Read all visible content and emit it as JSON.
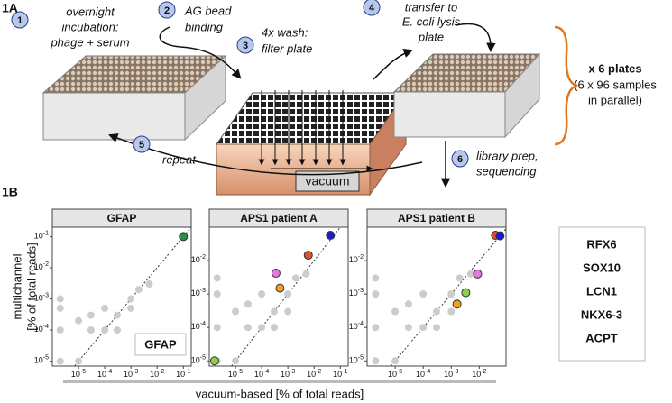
{
  "panel_a": {
    "label": "1A",
    "steps": [
      {
        "number": "1",
        "lines": [
          "overnight",
          "incubation:",
          "phage + serum"
        ]
      },
      {
        "number": "2",
        "lines": [
          "AG bead",
          "binding"
        ]
      },
      {
        "number": "3",
        "lines": [
          "4x wash:",
          "filter plate"
        ]
      },
      {
        "number": "4",
        "lines": [
          "transfer to",
          "E. coli lysis",
          "plate"
        ]
      },
      {
        "number": "5",
        "lines": [
          "repeat"
        ]
      },
      {
        "number": "6",
        "lines": [
          "library prep,",
          "sequencing"
        ]
      }
    ],
    "vacuum": "vacuum",
    "summary": [
      "x 6 plates",
      "(6 x 96 samples",
      "in parallel)"
    ]
  },
  "panel_b": {
    "label": "1B",
    "x_label": "vacuum-based [% of total reads]",
    "y_label": "multichannel",
    "y_label_2": "[% of total reads]"
  },
  "chart_data": [
    {
      "type": "scatter",
      "title": "GFAP",
      "log_x": true,
      "log_y": true,
      "diagonal": true,
      "legend": "lower right",
      "xlim": [
        1e-06,
        0.2
      ],
      "ylim": [
        7e-06,
        0.2
      ],
      "xticks": [
        {
          "value": 1e-05,
          "label": "10-5"
        },
        {
          "value": 0.0001,
          "label": "10-4"
        },
        {
          "value": 0.001,
          "label": "10-3"
        },
        {
          "value": 0.01,
          "label": "10-2"
        },
        {
          "value": 0.1,
          "label": "10-1"
        }
      ],
      "yticks": [
        {
          "value": 1e-05,
          "label": "10-5"
        },
        {
          "value": 0.0001,
          "label": "10-4"
        },
        {
          "value": 0.001,
          "label": "10-3"
        },
        {
          "value": 0.01,
          "label": "10-2"
        },
        {
          "value": 0.1,
          "label": "10-1"
        }
      ],
      "series": [
        {
          "color": "#cccccc",
          "x": [
            2e-06,
            2e-06,
            2e-06,
            1e-05,
            1e-05,
            3e-05,
            0.0001,
            0.0001,
            0.0003,
            0.001,
            0.002,
            0.005,
            3e-05,
            0.0003,
            0.001,
            2e-06
          ],
          "values": [
            1e-05,
            0.0001,
            0.0005,
            1e-05,
            0.0002,
            0.0001,
            0.0001,
            0.0005,
            0.0003,
            0.001,
            0.002,
            0.003,
            0.0003,
            0.0001,
            0.0005,
            0.001
          ]
        },
        {
          "name": "GFAP",
          "color": "#2e8b4a",
          "x": [
            0.1
          ],
          "values": [
            0.1
          ]
        }
      ]
    },
    {
      "type": "scatter",
      "title": "APS1 patient A",
      "log_x": true,
      "log_y": true,
      "diagonal": true,
      "xlim": [
        1e-06,
        0.2
      ],
      "ylim": [
        7e-06,
        0.1
      ],
      "xticks": [
        {
          "value": 1e-05,
          "label": "10-5"
        },
        {
          "value": 0.0001,
          "label": "10-4"
        },
        {
          "value": 0.001,
          "label": "10-3"
        },
        {
          "value": 0.01,
          "label": "10-2"
        },
        {
          "value": 0.1,
          "label": "10-1"
        }
      ],
      "yticks": [
        {
          "value": 1e-05,
          "label": "10-5"
        },
        {
          "value": 0.0001,
          "label": "10-4"
        },
        {
          "value": 0.001,
          "label": "10-3"
        },
        {
          "value": 0.01,
          "label": "10-2"
        }
      ],
      "series": [
        {
          "color": "#cccccc",
          "x": [
            2e-06,
            2e-06,
            2e-06,
            1e-05,
            1e-05,
            3e-05,
            0.0001,
            0.0001,
            0.0003,
            0.001,
            0.002,
            0.005,
            3e-05,
            0.0003,
            0.001,
            2e-06
          ],
          "values": [
            1e-05,
            0.0001,
            0.001,
            1e-05,
            0.0003,
            0.0001,
            0.0001,
            0.001,
            0.0003,
            0.001,
            0.003,
            0.004,
            0.0005,
            0.0001,
            0.0003,
            0.003
          ]
        },
        {
          "name": "RFX6",
          "color": "#e0522a",
          "x": [
            0.006
          ],
          "values": [
            0.0145
          ]
        },
        {
          "name": "SOX10",
          "color": "#1a1adc",
          "x": [
            0.042
          ],
          "values": [
            0.057
          ]
        },
        {
          "name": "LCN1",
          "color": "#f0a020",
          "x": [
            0.0005
          ],
          "values": [
            0.0015
          ]
        },
        {
          "name": "NKX6-3",
          "color": "#8ed04a",
          "x": [
            1.6e-06
          ],
          "values": [
            1e-05
          ]
        },
        {
          "name": "ACPT",
          "color": "#e878e0",
          "x": [
            0.00035
          ],
          "values": [
            0.0042
          ]
        }
      ]
    },
    {
      "type": "scatter",
      "title": "APS1 patient B",
      "log_x": true,
      "log_y": true,
      "diagonal": true,
      "xlim": [
        1e-06,
        0.09
      ],
      "ylim": [
        7e-06,
        0.1
      ],
      "xticks": [
        {
          "value": 1e-05,
          "label": "10-5"
        },
        {
          "value": 0.0001,
          "label": "10-4"
        },
        {
          "value": 0.001,
          "label": "10-3"
        },
        {
          "value": 0.01,
          "label": "10-2"
        }
      ],
      "yticks": [
        {
          "value": 1e-05,
          "label": "10-5"
        },
        {
          "value": 0.0001,
          "label": "10-4"
        },
        {
          "value": 0.001,
          "label": "10-3"
        },
        {
          "value": 0.01,
          "label": "10-2"
        }
      ],
      "series": [
        {
          "color": "#cccccc",
          "x": [
            2e-06,
            2e-06,
            2e-06,
            1e-05,
            1e-05,
            3e-05,
            0.0001,
            0.0001,
            0.0003,
            0.001,
            0.002,
            0.005,
            3e-05,
            0.0003,
            0.001,
            2e-06
          ],
          "values": [
            1e-05,
            0.0001,
            0.001,
            1e-05,
            0.0003,
            0.0001,
            0.0001,
            0.001,
            0.0003,
            0.001,
            0.003,
            0.004,
            0.0005,
            0.0001,
            0.0003,
            0.003
          ]
        },
        {
          "name": "RFX6",
          "color": "#e0522a",
          "x": [
            0.038
          ],
          "values": [
            0.057
          ]
        },
        {
          "name": "SOX10",
          "color": "#1a1adc",
          "x": [
            0.055
          ],
          "values": [
            0.055
          ]
        },
        {
          "name": "LCN1",
          "color": "#f0a020",
          "x": [
            0.0016
          ],
          "values": [
            0.0005
          ]
        },
        {
          "name": "NKX6-3",
          "color": "#8ed04a",
          "x": [
            0.0033
          ],
          "values": [
            0.0011
          ]
        },
        {
          "name": "ACPT",
          "color": "#e878e0",
          "x": [
            0.0087
          ],
          "values": [
            0.004
          ]
        }
      ]
    }
  ]
}
